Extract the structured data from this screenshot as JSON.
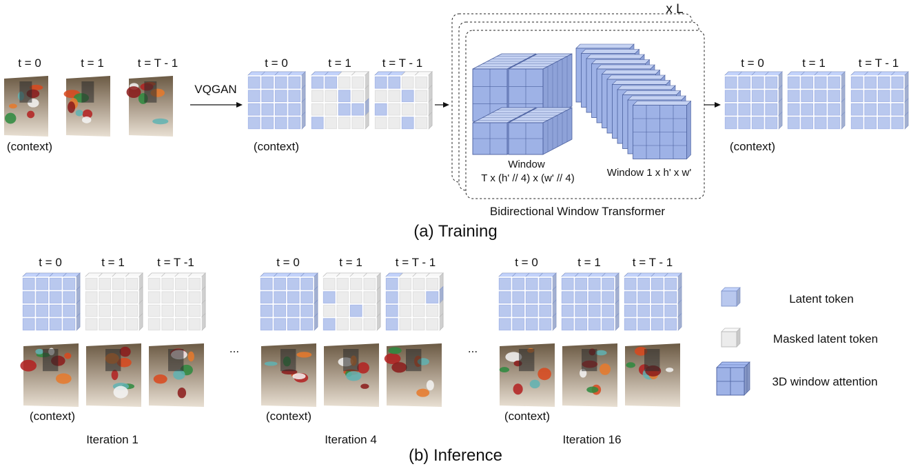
{
  "colors": {
    "latent": "#b9c8ee",
    "latent_edge": "#7f93c9",
    "masked": "#ececec",
    "masked_edge": "#b8b8b8",
    "window_front": "#9eb2e6",
    "window_edge": "#4a5f9e"
  },
  "training": {
    "caption": "(a) Training",
    "frames_input": {
      "labels": [
        "t = 0",
        "t = 1",
        "t = T - 1"
      ],
      "context_label": "(context)"
    },
    "vqgan_label": "VQGAN",
    "tokens_input": {
      "labels": [
        "t = 0",
        "t = 1",
        "t = T - 1"
      ],
      "context_label": "(context)"
    },
    "transformer": {
      "repeat_label": "x L",
      "window_a_label": "Window",
      "window_a_dims": "T x (h' // 4) x (w' // 4)",
      "window_b_label": "Window 1 x h' x w'",
      "title": "Bidirectional Window Transformer"
    },
    "tokens_output": {
      "labels": [
        "t = 0",
        "t = 1",
        "t = T - 1"
      ],
      "context_label": "(context)"
    }
  },
  "inference": {
    "caption": "(b) Inference",
    "ellipsis": "...",
    "iterations": [
      {
        "title": "Iteration 1",
        "labels": [
          "t = 0",
          "t = 1",
          "t = T -1"
        ],
        "context_label": "(context)"
      },
      {
        "title": "Iteration 4",
        "labels": [
          "t = 0",
          "t = 1",
          "t = T - 1"
        ],
        "context_label": "(context)"
      },
      {
        "title": "Iteration 16",
        "labels": [
          "t = 0",
          "t = 1",
          "t = T - 1"
        ],
        "context_label": "(context)"
      }
    ]
  },
  "legend": {
    "latent_label": "Latent token",
    "masked_label": "Masked latent token",
    "window_label": "3D window attention"
  }
}
